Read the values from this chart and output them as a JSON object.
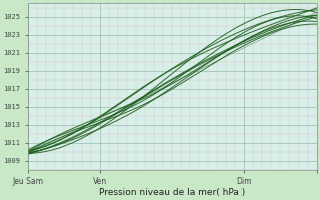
{
  "background_color": "#c8e8c8",
  "plot_bg_color": "#d8eee8",
  "grid_major_color": "#99bbaa",
  "grid_minor_color": "#ddaaaa",
  "line_color": "#1a5c1a",
  "ylabel_ticks": [
    1009,
    1011,
    1013,
    1015,
    1017,
    1019,
    1021,
    1023,
    1025
  ],
  "ylim": [
    1008.0,
    1026.5
  ],
  "xlim": [
    0,
    96
  ],
  "xlabel": "Pression niveau de la mer( hPa )",
  "xtick_positions": [
    0,
    24,
    72,
    96
  ],
  "xtick_labels": [
    "Jeu Sam",
    "Ven",
    "Dim",
    ""
  ]
}
